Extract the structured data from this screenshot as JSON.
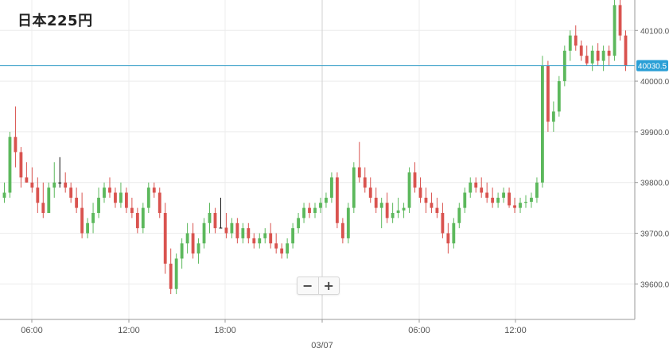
{
  "title": "日本225円",
  "zoom": {
    "minus_label": "−",
    "plus_label": "+"
  },
  "colors": {
    "up": "#5cb85c",
    "down": "#d9534f",
    "doji": "#111111",
    "price_line": "#3aa0c8",
    "price_badge": "#2a9fd6",
    "grid": "#ececec",
    "axis": "#9a9a9a"
  },
  "chart_data": {
    "type": "candlestick",
    "title": "日本225円",
    "ylim": [
      39530,
      40160
    ],
    "y_ticks": [
      39600,
      39700,
      39800,
      39900,
      40000,
      40100
    ],
    "y_tick_labels": [
      "39600.0",
      "39700.0",
      "39800.0",
      "39900.0",
      "40000.0",
      "40100.0"
    ],
    "x_ticks": [
      "06:00",
      "12:00",
      "18:00",
      "00:00",
      "06:00",
      "12:00"
    ],
    "x_tick_labels": [
      "06:00",
      "12:00",
      "18:00",
      "",
      "06:00",
      "12:00"
    ],
    "date_label": "03/07",
    "current_price": 40030.5,
    "current_price_label": "40030.5",
    "grid": true,
    "candles": [
      [
        39770,
        39800,
        39760,
        39780
      ],
      [
        39780,
        39900,
        39770,
        39890
      ],
      [
        39890,
        39950,
        39830,
        39860
      ],
      [
        39860,
        39870,
        39790,
        39810
      ],
      [
        39810,
        39840,
        39800,
        39800
      ],
      [
        39800,
        39830,
        39780,
        39790
      ],
      [
        39790,
        39810,
        39740,
        39760
      ],
      [
        39760,
        39800,
        39730,
        39740
      ],
      [
        39740,
        39800,
        39740,
        39790
      ],
      [
        39790,
        39840,
        39770,
        39800
      ],
      [
        39800,
        39850,
        39790,
        39800
      ],
      [
        39800,
        39820,
        39780,
        39790
      ],
      [
        39790,
        39800,
        39760,
        39770
      ],
      [
        39770,
        39790,
        39740,
        39750
      ],
      [
        39750,
        39780,
        39690,
        39700
      ],
      [
        39700,
        39730,
        39690,
        39720
      ],
      [
        39720,
        39760,
        39700,
        39740
      ],
      [
        39740,
        39790,
        39730,
        39770
      ],
      [
        39770,
        39800,
        39760,
        39790
      ],
      [
        39790,
        39810,
        39770,
        39780
      ],
      [
        39780,
        39790,
        39750,
        39760
      ],
      [
        39760,
        39800,
        39750,
        39780
      ],
      [
        39780,
        39790,
        39740,
        39750
      ],
      [
        39750,
        39770,
        39730,
        39740
      ],
      [
        39740,
        39750,
        39700,
        39710
      ],
      [
        39710,
        39760,
        39700,
        39750
      ],
      [
        39750,
        39800,
        39740,
        39790
      ],
      [
        39790,
        39800,
        39770,
        39780
      ],
      [
        39780,
        39790,
        39730,
        39740
      ],
      [
        39740,
        39760,
        39620,
        39640
      ],
      [
        39640,
        39670,
        39580,
        39590
      ],
      [
        39590,
        39660,
        39580,
        39650
      ],
      [
        39650,
        39690,
        39630,
        39680
      ],
      [
        39680,
        39720,
        39660,
        39700
      ],
      [
        39700,
        39720,
        39650,
        39660
      ],
      [
        39660,
        39690,
        39640,
        39680
      ],
      [
        39680,
        39730,
        39670,
        39720
      ],
      [
        39720,
        39760,
        39700,
        39740
      ],
      [
        39740,
        39750,
        39700,
        39710
      ],
      [
        39710,
        39770,
        39710,
        39711
      ],
      [
        39711,
        39740,
        39690,
        39700
      ],
      [
        39700,
        39730,
        39690,
        39720
      ],
      [
        39720,
        39730,
        39680,
        39690
      ],
      [
        39690,
        39720,
        39680,
        39710
      ],
      [
        39710,
        39720,
        39680,
        39690
      ],
      [
        39690,
        39700,
        39670,
        39680
      ],
      [
        39680,
        39700,
        39670,
        39690
      ],
      [
        39690,
        39710,
        39680,
        39700
      ],
      [
        39700,
        39720,
        39670,
        39680
      ],
      [
        39680,
        39700,
        39660,
        39670
      ],
      [
        39670,
        39680,
        39650,
        39660
      ],
      [
        39660,
        39690,
        39650,
        39680
      ],
      [
        39680,
        39720,
        39670,
        39710
      ],
      [
        39710,
        39740,
        39700,
        39730
      ],
      [
        39730,
        39760,
        39720,
        39750
      ],
      [
        39750,
        39760,
        39730,
        39740
      ],
      [
        39740,
        39760,
        39730,
        39750
      ],
      [
        39750,
        39770,
        39740,
        39760
      ],
      [
        39760,
        39780,
        39750,
        39770
      ],
      [
        39770,
        39820,
        39760,
        39810
      ],
      [
        39810,
        39820,
        39710,
        39720
      ],
      [
        39720,
        39730,
        39680,
        39690
      ],
      [
        39690,
        39760,
        39680,
        39750
      ],
      [
        39750,
        39840,
        39740,
        39830
      ],
      [
        39830,
        39880,
        39800,
        39810
      ],
      [
        39810,
        39830,
        39780,
        39790
      ],
      [
        39790,
        39810,
        39760,
        39770
      ],
      [
        39770,
        39790,
        39740,
        39750
      ],
      [
        39750,
        39770,
        39710,
        39760
      ],
      [
        39760,
        39780,
        39720,
        39730
      ],
      [
        39730,
        39760,
        39720,
        39740
      ],
      [
        39740,
        39770,
        39730,
        39745
      ],
      [
        39745,
        39760,
        39730,
        39750
      ],
      [
        39750,
        39830,
        39740,
        39820
      ],
      [
        39820,
        39840,
        39780,
        39790
      ],
      [
        39790,
        39810,
        39760,
        39770
      ],
      [
        39770,
        39790,
        39740,
        39760
      ],
      [
        39760,
        39780,
        39740,
        39750
      ],
      [
        39750,
        39770,
        39730,
        39740
      ],
      [
        39740,
        39760,
        39690,
        39700
      ],
      [
        39700,
        39720,
        39660,
        39680
      ],
      [
        39680,
        39730,
        39670,
        39720
      ],
      [
        39720,
        39760,
        39710,
        39750
      ],
      [
        39750,
        39790,
        39740,
        39780
      ],
      [
        39780,
        39810,
        39770,
        39800
      ],
      [
        39800,
        39810,
        39780,
        39790
      ],
      [
        39790,
        39810,
        39770,
        39780
      ],
      [
        39780,
        39800,
        39760,
        39770
      ],
      [
        39770,
        39790,
        39750,
        39760
      ],
      [
        39760,
        39780,
        39750,
        39770
      ],
      [
        39770,
        39790,
        39760,
        39780
      ],
      [
        39780,
        39790,
        39750,
        39755
      ],
      [
        39755,
        39770,
        39740,
        39750
      ],
      [
        39750,
        39770,
        39740,
        39760
      ],
      [
        39760,
        39775,
        39750,
        39762
      ],
      [
        39762,
        39780,
        39750,
        39770
      ],
      [
        39770,
        39810,
        39760,
        39800
      ],
      [
        39800,
        40050,
        39790,
        40030
      ],
      [
        40030,
        40040,
        39900,
        39920
      ],
      [
        39920,
        39960,
        39900,
        39940
      ],
      [
        39940,
        40010,
        39930,
        40000
      ],
      [
        40000,
        40070,
        39990,
        40060
      ],
      [
        40060,
        40100,
        40040,
        40090
      ],
      [
        40090,
        40110,
        40060,
        40070
      ],
      [
        40070,
        40080,
        40040,
        40050
      ],
      [
        40050,
        40070,
        40030,
        40035
      ],
      [
        40035,
        40070,
        40020,
        40060
      ],
      [
        40060,
        40075,
        40030,
        40040
      ],
      [
        40040,
        40070,
        40020,
        40060
      ],
      [
        40060,
        40070,
        40030,
        40050
      ],
      [
        40050,
        40160,
        40040,
        40150
      ],
      [
        40150,
        40160,
        40080,
        40090
      ],
      [
        40090,
        40100,
        40020,
        40030
      ]
    ]
  }
}
